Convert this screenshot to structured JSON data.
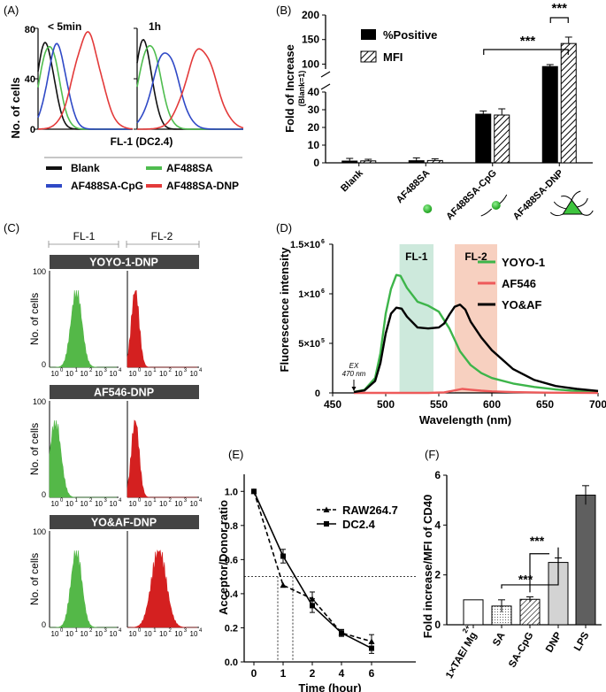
{
  "panels": {
    "a": {
      "letter": "(A)",
      "ylabel": "No. of cells",
      "xlabel": "FL-1 (DC2.4)",
      "yticks": [
        "80",
        "40",
        "0"
      ],
      "sub1": "< 5min",
      "sub2": "1h",
      "legend": [
        {
          "label": "Blank",
          "color": "#111111"
        },
        {
          "label": "AF488SA",
          "color": "#4fbd4f"
        },
        {
          "label": "AF488SA-CpG",
          "color": "#2f49c6"
        },
        {
          "label": "AF488SA-DNP",
          "color": "#e33a3a"
        }
      ]
    },
    "b": {
      "letter": "(B)"
    },
    "c": {
      "letter": "(C)",
      "col1": "FL-1",
      "col2": "FL-2",
      "ylabel": "No. of cells",
      "yticks": [
        "100",
        "0"
      ],
      "xticks": [
        "10",
        "10",
        "10",
        "10",
        "10"
      ],
      "xexp": [
        "0",
        "1",
        "2",
        "3",
        "4"
      ],
      "rows": [
        {
          "title": "YOYO-1-DNP",
          "fl1_peak": 1.6,
          "fl2_peak": 0.45,
          "fl2_narrow": true
        },
        {
          "title": "AF546-DNP",
          "fl1_peak": 0.35,
          "fl2_peak": 0.45,
          "fl2_narrow": true
        },
        {
          "title": "YO&AF-DNP",
          "fl1_peak": 1.6,
          "fl2_peak": 1.8,
          "fl2_narrow": false
        }
      ],
      "green": "#54b848",
      "red": "#d42020"
    },
    "d": {
      "letter": "(D)",
      "band1": "FL-1",
      "band2": "FL-2",
      "ex_label1": "EX",
      "ex_label2": "470 nm"
    },
    "e": {
      "letter": "(E)"
    },
    "f": {
      "letter": "(F)"
    }
  },
  "chart_data": [
    {
      "id": "B",
      "type": "bar",
      "title": "",
      "ylabel": "Fold of Increase",
      "ylabel_sub": "(Blank=1)",
      "categories": [
        "Blank",
        "AF488SA",
        "AF488SA-CpG",
        "AF488SA-DNP"
      ],
      "series": [
        {
          "name": "%Positive",
          "values": [
            1,
            1.2,
            27.5,
            95
          ],
          "errors": [
            1.5,
            1.6,
            1.8,
            4
          ]
        },
        {
          "name": "MFI",
          "values": [
            1.1,
            1.3,
            27,
            142
          ],
          "errors": [
            0.9,
            1.0,
            3.5,
            13
          ]
        }
      ],
      "yticks_lower": [
        "0",
        "10",
        "20",
        "30",
        "40"
      ],
      "yticks_upper": [
        "100",
        "150",
        "200"
      ],
      "axis_break": [
        40,
        90
      ],
      "significance": [
        "***",
        "***"
      ]
    },
    {
      "id": "D",
      "type": "line",
      "xlabel": "Wavelength (nm)",
      "ylabel": "Fluorescence intensity",
      "xlim": [
        450,
        700
      ],
      "ylim": [
        0,
        1500000
      ],
      "xticks": [
        "450",
        "500",
        "550",
        "600",
        "650",
        "700"
      ],
      "yticks": [
        {
          "base": "0",
          "exp": ""
        },
        {
          "base": "5×10",
          "exp": "5"
        },
        {
          "base": "1×10",
          "exp": "6"
        },
        {
          "base": "1.5×10",
          "exp": "6"
        }
      ],
      "bands": [
        [
          513,
          545
        ],
        [
          565,
          605
        ]
      ],
      "series": [
        {
          "name": "YOYO-1",
          "color": "#3db54a",
          "x": [
            470,
            480,
            490,
            495,
            500,
            505,
            510,
            514,
            520,
            530,
            540,
            550,
            560,
            570,
            580,
            590,
            600,
            620,
            640,
            660,
            680,
            700
          ],
          "y": [
            10000,
            30000,
            150000,
            400000,
            800000,
            1050000,
            1190000,
            1180000,
            1060000,
            920000,
            880000,
            820000,
            650000,
            420000,
            280000,
            200000,
            150000,
            95000,
            60000,
            35000,
            20000,
            10000
          ]
        },
        {
          "name": "AF546",
          "color": "#ee5a5a",
          "x": [
            470,
            540,
            555,
            565,
            572,
            580,
            590,
            600,
            620,
            650,
            700
          ],
          "y": [
            0,
            0,
            5000,
            25000,
            40000,
            32000,
            22000,
            15000,
            8000,
            3000,
            0
          ]
        },
        {
          "name": "YO&AF",
          "color": "#000000",
          "x": [
            470,
            480,
            490,
            495,
            500,
            505,
            510,
            515,
            520,
            530,
            540,
            550,
            555,
            560,
            565,
            570,
            575,
            580,
            590,
            600,
            620,
            640,
            660,
            680,
            700
          ],
          "y": [
            8000,
            25000,
            120000,
            300000,
            600000,
            800000,
            860000,
            850000,
            770000,
            660000,
            650000,
            660000,
            700000,
            790000,
            870000,
            890000,
            840000,
            720000,
            560000,
            430000,
            240000,
            130000,
            70000,
            40000,
            20000
          ]
        }
      ]
    },
    {
      "id": "E",
      "type": "line",
      "xlabel": "Time (hour)",
      "ylabel": "Acceptor/Donor ratio",
      "ylim": [
        0,
        1.1
      ],
      "yticks": [
        "0.0",
        "0.2",
        "0.4",
        "0.6",
        "0.8",
        "1.0"
      ],
      "categories": [
        "0",
        "1",
        "2",
        "4",
        "6"
      ],
      "series": [
        {
          "name": "RAW264.7",
          "dashed": true,
          "values": [
            1.0,
            0.45,
            0.37,
            0.17,
            0.12
          ],
          "errors": [
            0,
            0,
            0.04,
            0.02,
            0.04
          ]
        },
        {
          "name": "DC2.4",
          "dashed": false,
          "values": [
            1.0,
            0.62,
            0.33,
            0.17,
            0.08
          ],
          "errors": [
            0,
            0.04,
            0.04,
            0.02,
            0.03
          ]
        }
      ],
      "hline": 0.5
    },
    {
      "id": "F",
      "type": "bar",
      "ylabel": "Fold increase/MFI of CD40",
      "ylim": [
        0,
        6
      ],
      "yticks": [
        "0",
        "2",
        "4",
        "6"
      ],
      "categories": [
        "1×TAE/ Mg",
        "SA",
        "SA-CpG",
        "DNP",
        "LPS"
      ],
      "cat0_sup": "2+",
      "values": [
        1.0,
        0.75,
        1.02,
        2.5,
        5.2
      ],
      "errors": [
        0,
        0.25,
        0.1,
        0.18,
        0.38
      ],
      "fills": [
        "#ffffff",
        "dots",
        "hatch",
        "#d3d3d3",
        "#5f5f5f"
      ],
      "significance": [
        "***",
        "***"
      ]
    }
  ]
}
